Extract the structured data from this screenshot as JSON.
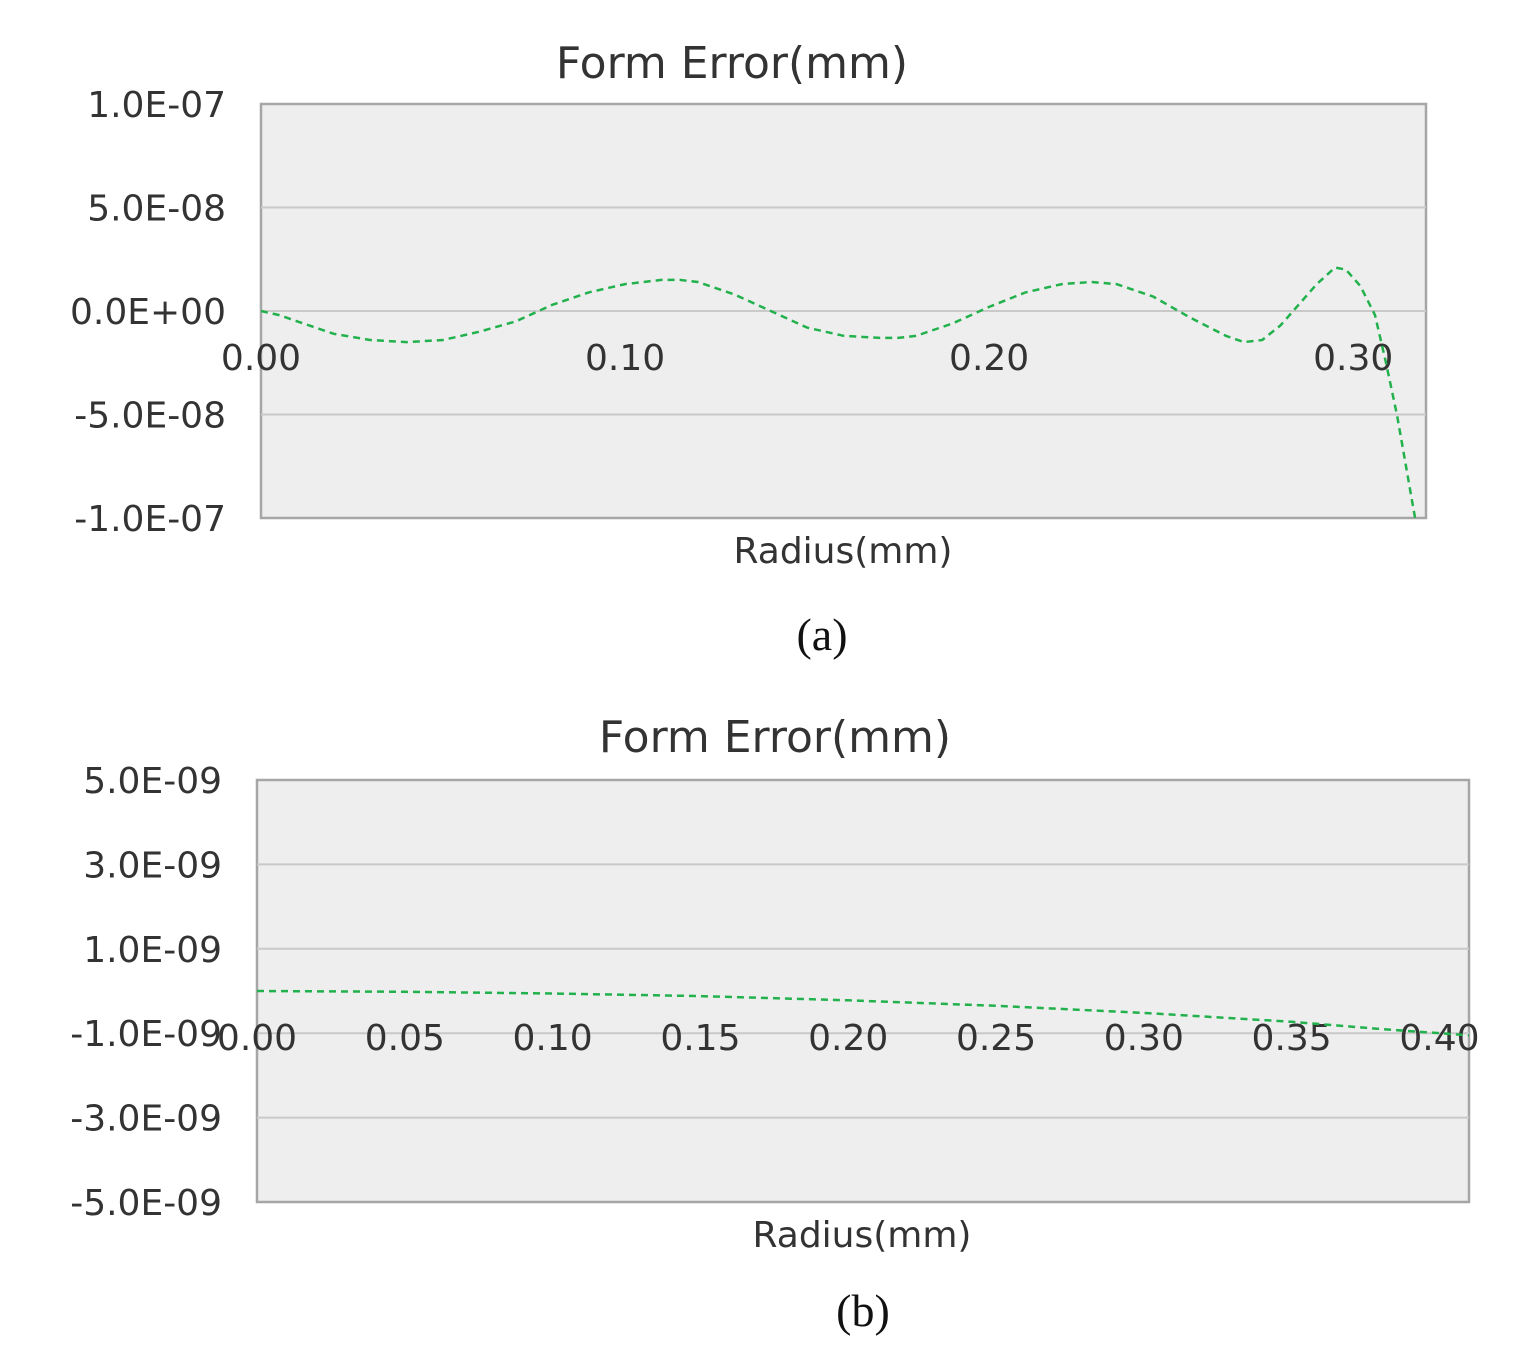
{
  "colors": {
    "series": "#22b14c"
  },
  "chart_data": [
    {
      "type": "line",
      "title": "Form Error(mm)",
      "xlabel": "Radius(mm)",
      "ylabel": "",
      "caption": "(a)",
      "xlim": [
        0,
        0.32
      ],
      "ylim": [
        -1e-07,
        1e-07
      ],
      "xticks": [
        0.0,
        0.1,
        0.2,
        0.3
      ],
      "xtick_labels": [
        "0.00",
        "0.10",
        "0.20",
        "0.30"
      ],
      "yticks": [
        1e-07,
        5e-08,
        0,
        -5e-08,
        -1e-07
      ],
      "ytick_labels": [
        "1.0E-07",
        "5.0E-08",
        "0.0E+00",
        "-5.0E-08",
        "-1.0E-07"
      ],
      "grid": true,
      "legend": false,
      "series": [
        {
          "x": [
            0.0,
            0.005,
            0.01,
            0.02,
            0.03,
            0.04,
            0.05,
            0.06,
            0.07,
            0.08,
            0.09,
            0.1,
            0.11,
            0.115,
            0.12,
            0.13,
            0.14,
            0.15,
            0.16,
            0.17,
            0.175,
            0.18,
            0.19,
            0.2,
            0.21,
            0.22,
            0.228,
            0.235,
            0.245,
            0.255,
            0.265,
            0.27,
            0.275,
            0.28,
            0.285,
            0.29,
            0.295,
            0.298,
            0.302,
            0.306,
            0.309,
            0.312,
            0.314,
            0.316,
            0.317
          ],
          "y": [
            0,
            -2e-09,
            -5e-09,
            -1.1e-08,
            -1.4e-08,
            -1.5e-08,
            -1.4e-08,
            -1e-08,
            -5e-09,
            3e-09,
            9e-09,
            1.3e-08,
            1.5e-08,
            1.5e-08,
            1.4e-08,
            8e-09,
            0.0,
            -8e-09,
            -1.2e-08,
            -1.3e-08,
            -1.3e-08,
            -1.2e-08,
            -6e-09,
            2e-09,
            9e-09,
            1.3e-08,
            1.4e-08,
            1.3e-08,
            7e-09,
            -3e-09,
            -1.2e-08,
            -1.5e-08,
            -1.4e-08,
            -7e-09,
            3e-09,
            1.3e-08,
            2.1e-08,
            2e-08,
            1.2e-08,
            -2e-09,
            -2.5e-08,
            -5e-08,
            -7e-08,
            -9e-08,
            -1e-07
          ]
        }
      ]
    },
    {
      "type": "line",
      "title": "Form Error(mm)",
      "xlabel": "Radius(mm)",
      "ylabel": "",
      "caption": "(b)",
      "xlim": [
        0,
        0.41
      ],
      "ylim": [
        -5e-09,
        5e-09
      ],
      "xticks": [
        0.0,
        0.05,
        0.1,
        0.15,
        0.2,
        0.25,
        0.3,
        0.35,
        0.4
      ],
      "xtick_labels": [
        "0.00",
        "0.05",
        "0.10",
        "0.15",
        "0.20",
        "0.25",
        "0.30",
        "0.35",
        "0.40"
      ],
      "yticks": [
        5e-09,
        3e-09,
        1e-09,
        -1e-09,
        -3e-09,
        -5e-09
      ],
      "ytick_labels": [
        "5.0E-09",
        "3.0E-09",
        "1.0E-09",
        "-1.0E-09",
        "-3.0E-09",
        "-5.0E-09"
      ],
      "grid": true,
      "legend": false,
      "series": [
        {
          "x": [
            0.0,
            0.05,
            0.1,
            0.15,
            0.2,
            0.25,
            0.3,
            0.35,
            0.38,
            0.4,
            0.41
          ],
          "y": [
            0,
            -2e-11,
            -6e-11,
            -1.2e-10,
            -2.2e-10,
            -3.5e-10,
            -5.2e-10,
            -7.3e-10,
            -9e-10,
            -1e-09,
            -1.05e-09
          ]
        }
      ]
    }
  ]
}
